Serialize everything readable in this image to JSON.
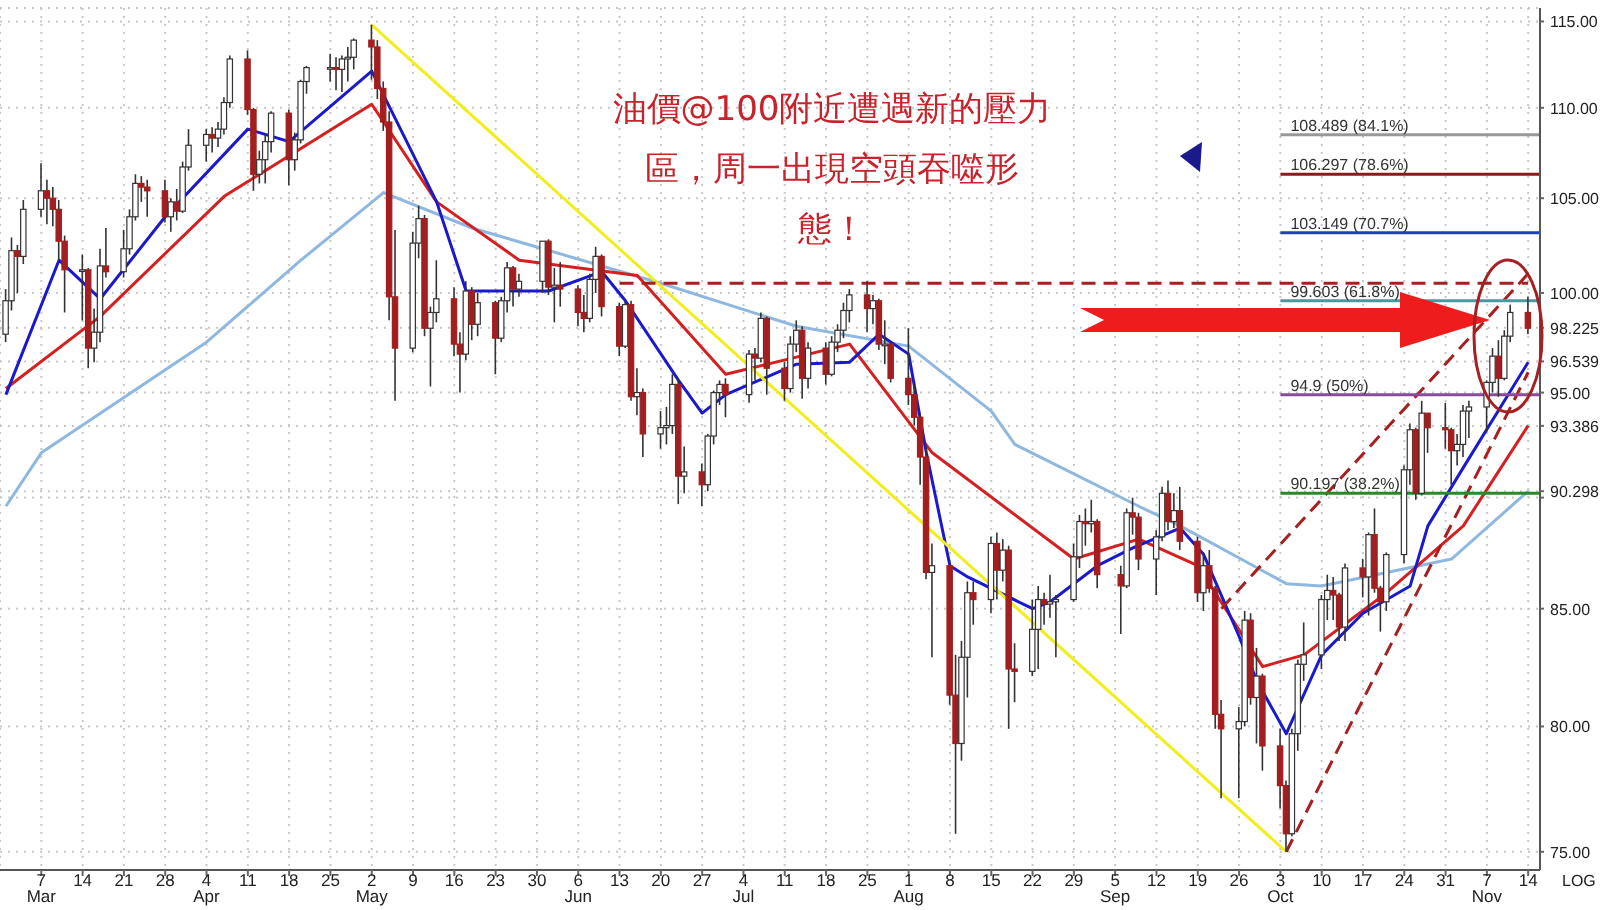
{
  "chart_data": {
    "type": "candlestick",
    "log": true,
    "grid": true,
    "xlim": [
      "--02-28",
      "--11-16"
    ],
    "ylim": [
      74.3,
      115.8
    ],
    "yticks": [
      {
        "value": 75,
        "label": "75.00"
      },
      {
        "value": 80,
        "label": "80.00"
      },
      {
        "value": 85,
        "label": "85.00"
      },
      {
        "value": 90,
        "label": null
      },
      {
        "value": 90.298,
        "label": "90.298"
      },
      {
        "value": 93.386,
        "label": "93.386"
      },
      {
        "value": 95,
        "label": "95.00"
      },
      {
        "value": 96.539,
        "label": "96.539"
      },
      {
        "value": 98.225,
        "label": "98.225"
      },
      {
        "value": 100,
        "label": "100.00"
      },
      {
        "value": 105,
        "label": "105.00"
      },
      {
        "value": 110,
        "label": "110.00"
      },
      {
        "value": 115,
        "label": "115.00"
      }
    ],
    "xticks": [
      {
        "value": "--03-07",
        "label": "7\nMar"
      },
      {
        "value": "--03-14",
        "label": "14"
      },
      {
        "value": "--03-21",
        "label": "21"
      },
      {
        "value": "--03-28",
        "label": "28"
      },
      {
        "value": "--04-04",
        "label": "4\nApr"
      },
      {
        "value": "--04-11",
        "label": "11"
      },
      {
        "value": "--04-18",
        "label": "18"
      },
      {
        "value": "--04-25",
        "label": "25"
      },
      {
        "value": "--05-02",
        "label": "2\nMay"
      },
      {
        "value": "--05-09",
        "label": "9"
      },
      {
        "value": "--05-16",
        "label": "16"
      },
      {
        "value": "--05-23",
        "label": "23"
      },
      {
        "value": "--05-30",
        "label": "30"
      },
      {
        "value": "--06-06",
        "label": "6\nJun"
      },
      {
        "value": "--06-13",
        "label": "13"
      },
      {
        "value": "--06-20",
        "label": "20"
      },
      {
        "value": "--06-27",
        "label": "27"
      },
      {
        "value": "--07-04",
        "label": "4\nJul"
      },
      {
        "value": "--07-11",
        "label": "11"
      },
      {
        "value": "--07-18",
        "label": "18"
      },
      {
        "value": "--07-25",
        "label": "25"
      },
      {
        "value": "--08-01",
        "label": "1\nAug"
      },
      {
        "value": "--08-08",
        "label": "8"
      },
      {
        "value": "--08-15",
        "label": "15"
      },
      {
        "value": "--08-22",
        "label": "22"
      },
      {
        "value": "--08-29",
        "label": "29"
      },
      {
        "value": "--09-05",
        "label": "5\nSep"
      },
      {
        "value": "--09-12",
        "label": "12"
      },
      {
        "value": "--09-19",
        "label": "19"
      },
      {
        "value": "--09-26",
        "label": "26"
      },
      {
        "value": "--10-03",
        "label": "3\nOct"
      },
      {
        "value": "--10-10",
        "label": "10"
      },
      {
        "value": "--10-17",
        "label": "17"
      },
      {
        "value": "--10-24",
        "label": "24"
      },
      {
        "value": "--10-31",
        "label": "31"
      },
      {
        "value": "--11-07",
        "label": "7\nNov"
      },
      {
        "value": "--11-14",
        "label": "14"
      }
    ],
    "x": [
      "--03-01",
      "--03-02",
      "--03-03",
      "--03-04",
      "--03-07",
      "--03-08",
      "--03-09",
      "--03-10",
      "--03-11",
      "--03-14",
      "--03-15",
      "--03-16",
      "--03-17",
      "--03-18",
      "--03-21",
      "--03-22",
      "--03-23",
      "--03-24",
      "--03-25",
      "--03-28",
      "--03-29",
      "--03-30",
      "--03-31",
      "--04-01",
      "--04-04",
      "--04-05",
      "--04-06",
      "--04-07",
      "--04-08",
      "--04-11",
      "--04-12",
      "--04-13",
      "--04-14",
      "--04-15",
      "--04-18",
      "--04-19",
      "--04-20",
      "--04-21",
      "--04-25",
      "--04-26",
      "--04-27",
      "--04-28",
      "--04-29",
      "--05-02",
      "--05-03",
      "--05-04",
      "--05-05",
      "--05-06",
      "--05-09",
      "--05-10",
      "--05-11",
      "--05-12",
      "--05-13",
      "--05-16",
      "--05-17",
      "--05-18",
      "--05-19",
      "--05-20",
      "--05-23",
      "--05-24",
      "--05-25",
      "--05-26",
      "--05-27",
      "--05-31",
      "--06-01",
      "--06-02",
      "--06-03",
      "--06-06",
      "--06-07",
      "--06-08",
      "--06-09",
      "--06-10",
      "--06-13",
      "--06-14",
      "--06-15",
      "--06-16",
      "--06-17",
      "--06-20",
      "--06-21",
      "--06-22",
      "--06-23",
      "--06-24",
      "--06-27",
      "--06-28",
      "--06-29",
      "--06-30",
      "--07-01",
      "--07-05",
      "--07-06",
      "--07-07",
      "--07-08",
      "--07-11",
      "--07-12",
      "--07-13",
      "--07-14",
      "--07-15",
      "--07-18",
      "--07-19",
      "--07-20",
      "--07-21",
      "--07-22",
      "--07-25",
      "--07-26",
      "--07-27",
      "--07-28",
      "--07-29",
      "--08-01",
      "--08-02",
      "--08-03",
      "--08-04",
      "--08-05",
      "--08-08",
      "--08-09",
      "--08-10",
      "--08-11",
      "--08-12",
      "--08-15",
      "--08-16",
      "--08-17",
      "--08-18",
      "--08-19",
      "--08-22",
      "--08-23",
      "--08-24",
      "--08-25",
      "--08-26",
      "--08-29",
      "--08-30",
      "--08-31",
      "--09-01",
      "--09-02",
      "--09-06",
      "--09-07",
      "--09-08",
      "--09-09",
      "--09-12",
      "--09-13",
      "--09-14",
      "--09-15",
      "--09-16",
      "--09-19",
      "--09-20",
      "--09-21",
      "--09-22",
      "--09-23",
      "--09-26",
      "--09-27",
      "--09-28",
      "--09-29",
      "--09-30",
      "--10-03",
      "--10-04",
      "--10-05",
      "--10-06",
      "--10-07",
      "--10-10",
      "--10-11",
      "--10-12",
      "--10-13",
      "--10-14",
      "--10-17",
      "--10-18",
      "--10-19",
      "--10-20",
      "--10-21",
      "--10-24",
      "--10-25",
      "--10-26",
      "--10-27",
      "--10-28",
      "--10-31",
      "--11-01",
      "--11-02",
      "--11-03",
      "--11-04",
      "--11-07",
      "--11-08",
      "--11-09",
      "--11-10",
      "--11-11",
      "--11-14"
    ],
    "ohlc": [
      [
        97.9,
        100.2,
        97.5,
        99.6
      ],
      [
        99.6,
        102.9,
        99.1,
        102.2
      ],
      [
        102.2,
        102.5,
        100.0,
        101.9
      ],
      [
        101.9,
        104.9,
        101.5,
        104.4
      ],
      [
        104.4,
        106.9,
        104.0,
        105.4
      ],
      [
        105.4,
        106.0,
        103.6,
        105.0
      ],
      [
        105.0,
        105.6,
        103.5,
        104.4
      ],
      [
        104.4,
        104.9,
        101.7,
        102.7
      ],
      [
        102.7,
        103.0,
        99.0,
        101.2
      ],
      [
        101.2,
        102.0,
        98.6,
        101.2
      ],
      [
        101.2,
        101.3,
        96.2,
        97.2
      ],
      [
        97.2,
        99.2,
        96.5,
        98.0
      ],
      [
        98.0,
        102.3,
        97.5,
        101.4
      ],
      [
        101.4,
        103.4,
        100.8,
        101.1
      ],
      [
        101.1,
        103.3,
        100.8,
        102.3
      ],
      [
        102.3,
        104.4,
        102.0,
        104.0
      ],
      [
        104.0,
        106.3,
        103.8,
        105.8
      ],
      [
        105.8,
        106.2,
        104.8,
        105.6
      ],
      [
        105.6,
        106.0,
        104.0,
        105.4
      ],
      [
        105.4,
        106.0,
        103.7,
        104.0
      ],
      [
        104.0,
        105.0,
        103.2,
        104.8
      ],
      [
        104.8,
        105.5,
        103.8,
        104.3
      ],
      [
        104.3,
        107.0,
        104.2,
        106.7
      ],
      [
        106.7,
        108.8,
        106.5,
        107.9
      ],
      [
        107.9,
        108.8,
        107.0,
        108.5
      ],
      [
        108.5,
        108.9,
        107.5,
        108.3
      ],
      [
        108.3,
        109.2,
        107.8,
        108.8
      ],
      [
        108.8,
        110.6,
        108.5,
        110.3
      ],
      [
        110.3,
        113.0,
        110.0,
        112.8
      ],
      [
        112.8,
        113.3,
        109.6,
        109.9
      ],
      [
        109.9,
        110.0,
        105.4,
        106.3
      ],
      [
        106.3,
        107.6,
        105.8,
        107.1
      ],
      [
        107.1,
        108.5,
        105.8,
        108.1
      ],
      [
        108.1,
        109.8,
        107.5,
        109.7
      ],
      [
        109.7,
        109.9,
        105.7,
        107.1
      ],
      [
        107.1,
        108.6,
        106.5,
        108.2
      ],
      [
        108.2,
        111.6,
        108.0,
        111.5
      ],
      [
        111.5,
        112.4,
        110.8,
        112.3
      ],
      [
        112.3,
        113.1,
        111.5,
        112.3
      ],
      [
        112.3,
        112.9,
        111.0,
        112.2
      ],
      [
        112.2,
        113.0,
        110.9,
        112.8
      ],
      [
        112.8,
        113.5,
        111.5,
        112.9
      ],
      [
        112.9,
        114.0,
        112.2,
        113.9
      ],
      [
        113.9,
        114.8,
        111.6,
        113.5
      ],
      [
        113.5,
        113.9,
        110.5,
        111.1
      ],
      [
        111.1,
        111.5,
        108.7,
        109.2
      ],
      [
        109.2,
        109.8,
        98.6,
        99.8
      ],
      [
        99.8,
        103.3,
        94.6,
        97.2
      ],
      [
        97.2,
        103.2,
        97.0,
        102.6
      ],
      [
        102.6,
        104.6,
        101.8,
        103.9
      ],
      [
        103.9,
        104.1,
        97.8,
        98.2
      ],
      [
        98.2,
        99.3,
        95.3,
        99.0
      ],
      [
        99.0,
        101.7,
        98.5,
        99.7
      ],
      [
        99.7,
        100.3,
        96.8,
        97.4
      ],
      [
        97.4,
        98.0,
        95.0,
        96.9
      ],
      [
        96.9,
        100.6,
        96.6,
        100.1
      ],
      [
        100.1,
        100.3,
        97.6,
        98.4
      ],
      [
        98.4,
        100.0,
        97.8,
        99.5
      ],
      [
        99.5,
        99.6,
        95.9,
        97.7
      ],
      [
        97.7,
        99.8,
        97.5,
        99.6
      ],
      [
        99.6,
        101.6,
        99.0,
        101.3
      ],
      [
        101.3,
        101.4,
        99.3,
        100.2
      ],
      [
        100.2,
        101.0,
        99.8,
        100.6
      ],
      [
        100.6,
        102.7,
        100.0,
        102.7
      ],
      [
        102.7,
        102.8,
        99.9,
        100.3
      ],
      [
        100.3,
        101.3,
        98.5,
        100.4
      ],
      [
        100.4,
        101.6,
        99.3,
        100.2
      ],
      [
        100.2,
        100.4,
        98.3,
        99.0
      ],
      [
        99.0,
        99.9,
        98.0,
        98.7
      ],
      [
        98.7,
        101.0,
        98.5,
        100.7
      ],
      [
        100.7,
        102.4,
        100.0,
        101.9
      ],
      [
        101.9,
        102.0,
        98.8,
        99.3
      ],
      [
        99.3,
        99.5,
        96.8,
        97.3
      ],
      [
        97.3,
        99.6,
        97.2,
        99.4
      ],
      [
        99.4,
        99.6,
        94.6,
        94.8
      ],
      [
        94.8,
        96.2,
        93.9,
        95.0
      ],
      [
        95.0,
        95.2,
        91.9,
        93.0
      ],
      [
        93.0,
        94.1,
        92.3,
        93.3
      ],
      [
        93.3,
        94.3,
        92.5,
        93.4
      ],
      [
        93.4,
        95.9,
        93.0,
        95.4
      ],
      [
        95.4,
        95.7,
        89.7,
        91.0
      ],
      [
        91.0,
        92.4,
        90.2,
        91.2
      ],
      [
        91.2,
        91.6,
        89.6,
        90.6
      ],
      [
        90.6,
        93.0,
        90.3,
        92.9
      ],
      [
        92.9,
        95.1,
        92.5,
        95.0
      ],
      [
        95.0,
        95.6,
        94.4,
        95.4
      ],
      [
        95.4,
        95.7,
        93.8,
        94.9
      ],
      [
        94.9,
        97.1,
        94.5,
        96.9
      ],
      [
        96.9,
        97.2,
        95.6,
        96.7
      ],
      [
        96.7,
        99.0,
        96.5,
        98.7
      ],
      [
        98.7,
        98.8,
        94.9,
        96.2
      ],
      [
        96.2,
        96.5,
        94.6,
        95.2
      ],
      [
        95.2,
        97.8,
        95.0,
        97.4
      ],
      [
        97.4,
        98.6,
        97.0,
        98.1
      ],
      [
        98.1,
        98.3,
        94.7,
        95.7
      ],
      [
        95.7,
        97.5,
        95.2,
        97.2
      ],
      [
        97.2,
        97.5,
        95.4,
        95.9
      ],
      [
        95.9,
        97.8,
        95.8,
        97.5
      ],
      [
        97.5,
        98.4,
        97.0,
        98.1
      ],
      [
        98.1,
        99.5,
        97.7,
        99.1
      ],
      [
        99.1,
        100.2,
        98.5,
        99.9
      ],
      [
        99.9,
        100.6,
        98.0,
        99.2
      ],
      [
        99.2,
        99.9,
        98.4,
        99.6
      ],
      [
        99.6,
        99.7,
        97.1,
        97.4
      ],
      [
        97.4,
        98.6,
        96.4,
        97.4
      ],
      [
        97.4,
        97.5,
        95.5,
        95.7
      ],
      [
        95.7,
        98.2,
        94.4,
        94.9
      ],
      [
        94.9,
        95.4,
        93.4,
        93.8
      ],
      [
        93.8,
        94.0,
        90.6,
        91.9
      ],
      [
        91.9,
        92.4,
        86.3,
        86.6
      ],
      [
        86.6,
        87.9,
        82.9,
        86.9
      ],
      [
        86.9,
        87.0,
        80.9,
        81.3
      ],
      [
        81.3,
        83.0,
        75.7,
        79.3
      ],
      [
        79.3,
        83.6,
        78.6,
        82.9
      ],
      [
        82.9,
        86.2,
        81.2,
        85.7
      ],
      [
        85.7,
        86.2,
        84.3,
        85.4
      ],
      [
        85.4,
        88.2,
        84.8,
        87.9
      ],
      [
        87.9,
        88.4,
        85.4,
        86.7
      ],
      [
        86.7,
        88.1,
        86.2,
        87.6
      ],
      [
        87.6,
        87.8,
        79.9,
        82.4
      ],
      [
        82.4,
        83.5,
        81.0,
        82.3
      ],
      [
        82.3,
        85.4,
        82.1,
        84.1
      ],
      [
        84.1,
        86.0,
        82.4,
        85.4
      ],
      [
        85.4,
        85.7,
        84.3,
        85.2
      ],
      [
        85.2,
        86.5,
        84.6,
        85.3
      ],
      [
        85.3,
        85.6,
        82.9,
        85.4
      ],
      [
        85.4,
        87.9,
        85.3,
        87.3
      ],
      [
        87.3,
        89.2,
        86.8,
        88.9
      ],
      [
        88.9,
        89.5,
        87.8,
        88.8
      ],
      [
        88.8,
        89.9,
        88.4,
        88.9
      ],
      [
        88.9,
        89.0,
        85.9,
        86.5
      ],
      [
        86.5,
        86.9,
        83.9,
        86.0
      ],
      [
        86.0,
        89.5,
        85.9,
        89.3
      ],
      [
        89.3,
        90.0,
        88.3,
        89.1
      ],
      [
        89.1,
        89.3,
        86.7,
        87.2
      ],
      [
        87.2,
        88.5,
        85.6,
        88.2
      ],
      [
        88.2,
        90.5,
        88.0,
        90.2
      ],
      [
        90.2,
        90.8,
        88.5,
        88.9
      ],
      [
        88.9,
        90.2,
        88.6,
        89.4
      ],
      [
        89.4,
        90.5,
        87.6,
        88.0
      ],
      [
        88.0,
        88.2,
        85.3,
        85.7
      ],
      [
        85.7,
        87.5,
        84.9,
        86.9
      ],
      [
        86.9,
        87.6,
        85.7,
        85.9
      ],
      [
        85.9,
        86.0,
        79.9,
        80.5
      ],
      [
        80.5,
        81.1,
        77.1,
        79.9
      ],
      [
        79.9,
        80.8,
        77.1,
        80.2
      ],
      [
        80.2,
        84.9,
        80.0,
        84.5
      ],
      [
        84.5,
        84.8,
        80.9,
        81.2
      ],
      [
        81.2,
        83.3,
        79.3,
        82.1
      ],
      [
        82.1,
        82.2,
        78.2,
        79.2
      ],
      [
        79.2,
        79.9,
        76.7,
        77.6
      ],
      [
        77.6,
        77.8,
        75.0,
        75.7
      ],
      [
        75.7,
        79.9,
        75.6,
        79.7
      ],
      [
        79.7,
        82.8,
        79.0,
        82.6
      ],
      [
        82.6,
        84.4,
        81.9,
        83.0
      ],
      [
        83.0,
        85.6,
        82.4,
        85.4
      ],
      [
        85.4,
        86.5,
        84.5,
        85.8
      ],
      [
        85.8,
        86.4,
        84.5,
        85.6
      ],
      [
        85.6,
        85.7,
        83.6,
        84.2
      ],
      [
        84.2,
        87.0,
        83.6,
        86.8
      ],
      [
        86.8,
        87.2,
        85.5,
        86.4
      ],
      [
        86.4,
        88.4,
        84.7,
        88.3
      ],
      [
        88.3,
        89.5,
        85.7,
        85.9
      ],
      [
        85.9,
        86.0,
        84.0,
        85.3
      ],
      [
        85.3,
        87.5,
        84.9,
        87.4
      ],
      [
        87.4,
        91.5,
        87.0,
        91.3
      ],
      [
        91.3,
        93.5,
        90.6,
        93.2
      ],
      [
        93.2,
        93.3,
        89.9,
        90.2
      ],
      [
        90.2,
        94.6,
        90.1,
        94.0
      ],
      [
        94.0,
        94.0,
        92.1,
        93.3
      ],
      [
        93.3,
        94.5,
        92.3,
        93.2
      ],
      [
        93.2,
        93.3,
        90.6,
        92.2
      ],
      [
        92.2,
        93.0,
        91.5,
        92.5
      ],
      [
        92.5,
        94.4,
        91.9,
        94.1
      ],
      [
        94.1,
        94.6,
        92.8,
        94.3
      ],
      [
        94.3,
        95.6,
        93.1,
        95.5
      ],
      [
        95.5,
        97.2,
        95.0,
        96.8
      ],
      [
        96.8,
        97.6,
        94.8,
        95.7
      ],
      [
        95.7,
        98.1,
        95.6,
        97.8
      ],
      [
        97.8,
        99.4,
        97.5,
        99.0
      ],
      [
        99.0,
        99.8,
        97.9,
        98.2
      ]
    ],
    "series": [
      {
        "type": "line",
        "color": "#8fb8e0",
        "line_style": "solid",
        "x": [
          "--03-01",
          "--03-07",
          "--04-04",
          "--04-20",
          "--05-04",
          "--05-19",
          "--05-31",
          "--06-20",
          "--07-13",
          "--08-01",
          "--08-15",
          "--08-19",
          "--09-09",
          "--09-16",
          "--10-04",
          "--10-10",
          "--11-01",
          "--11-14"
        ],
        "values": [
          89.6,
          92.1,
          97.5,
          101.7,
          105.3,
          103.4,
          102.3,
          100.5,
          98.3,
          97.3,
          94.1,
          92.5,
          89.6,
          88.7,
          86.1,
          86.0,
          87.2,
          90.3
        ]
      },
      {
        "type": "line",
        "color": "#d42020",
        "line_style": "solid",
        "x": [
          "--03-01",
          "--03-17",
          "--04-07",
          "--05-02",
          "--05-13",
          "--05-27",
          "--06-16",
          "--07-01",
          "--07-22",
          "--08-05",
          "--08-29",
          "--09-09",
          "--09-19",
          "--09-30",
          "--10-07",
          "--10-21",
          "--11-03",
          "--11-08",
          "--11-14"
        ],
        "values": [
          95.2,
          98.8,
          105.1,
          110.2,
          104.8,
          101.7,
          100.9,
          95.9,
          97.4,
          92.1,
          87.2,
          88.1,
          86.9,
          82.5,
          83.0,
          85.7,
          88.7,
          90.8,
          93.4
        ]
      },
      {
        "type": "line",
        "color": "#1a1acc",
        "line_style": "solid",
        "x": [
          "--03-01",
          "--03-10",
          "--03-17",
          "--03-28",
          "--04-11",
          "--04-18",
          "--05-02",
          "--05-13",
          "--05-18",
          "--06-01",
          "--06-10",
          "--06-14",
          "--06-23",
          "--06-27",
          "--07-01",
          "--07-13",
          "--07-22",
          "--07-27",
          "--08-01",
          "--08-04",
          "--08-08",
          "--08-11",
          "--08-22",
          "--08-25",
          "--09-02",
          "--09-08",
          "--09-16",
          "--09-20",
          "--09-26",
          "--09-29",
          "--10-04",
          "--10-10",
          "--10-17",
          "--10-25",
          "--10-28",
          "--11-03",
          "--11-14"
        ],
        "values": [
          94.9,
          101.7,
          99.7,
          104.0,
          108.8,
          108.1,
          112.1,
          104.8,
          100.1,
          100.1,
          101.1,
          99.6,
          95.6,
          94.0,
          94.9,
          96.4,
          96.5,
          97.9,
          96.9,
          92.1,
          86.9,
          86.4,
          85.0,
          85.3,
          86.9,
          87.7,
          88.6,
          87.4,
          83.8,
          81.9,
          79.7,
          83.0,
          84.8,
          86.0,
          88.7,
          91.4,
          96.5
        ]
      },
      {
        "type": "line",
        "color": "#f2ee1c",
        "line_style": "solid",
        "x": [
          "--05-02",
          "--10-04"
        ],
        "values": [
          114.8,
          75.0
        ]
      },
      {
        "type": "line",
        "color": "#a52020",
        "line_style": "dashed",
        "x": [
          "--06-13",
          "--11-14"
        ],
        "values": [
          100.5,
          100.5
        ]
      },
      {
        "type": "line",
        "color": "#a52020",
        "line_style": "dashed",
        "x": [
          "--09-23",
          "--11-14"
        ],
        "values": [
          85.0,
          101.0
        ]
      },
      {
        "type": "line",
        "color": "#a52020",
        "line_style": "dashed",
        "x": [
          "--10-04",
          "--11-14"
        ],
        "values": [
          75.0,
          96.0
        ]
      },
      {
        "type": "line",
        "color": "#999999",
        "line_style": "solid",
        "x": [
          "--10-03",
          "--11-16"
        ],
        "values": [
          108.489,
          108.489
        ]
      },
      {
        "type": "line",
        "color": "#8b1a1a",
        "line_style": "solid",
        "x": [
          "--10-03",
          "--11-16"
        ],
        "values": [
          106.297,
          106.297
        ]
      },
      {
        "type": "line",
        "color": "#1f3fbf",
        "line_style": "solid",
        "x": [
          "--10-03",
          "--11-16"
        ],
        "values": [
          103.149,
          103.149
        ]
      },
      {
        "type": "line",
        "color": "#3aa0a0",
        "line_style": "solid",
        "x": [
          "--10-03",
          "--11-16"
        ],
        "values": [
          99.603,
          99.603
        ]
      },
      {
        "type": "line",
        "color": "#8a4a9a",
        "line_style": "solid",
        "x": [
          "--10-03",
          "--11-16"
        ],
        "values": [
          94.9,
          94.9
        ]
      },
      {
        "type": "line",
        "color": "#2a8a2a",
        "line_style": "solid",
        "x": [
          "--10-03",
          "--11-16"
        ],
        "values": [
          90.197,
          90.197
        ]
      }
    ],
    "annotations": [
      "油價@100附近遭遇新的壓力區，周一出現空頭吞噬形態！",
      "LOG",
      {
        "text": "108.489 (84.1%)",
        "x": "--10-03",
        "y": 108.489
      },
      {
        "text": "106.297 (78.6%)",
        "x": "--10-03",
        "y": 106.297
      },
      {
        "text": "103.149 (70.7%)",
        "x": "--10-03",
        "y": 103.149
      },
      {
        "text": "99.603 (61.8%)",
        "x": "--10-03",
        "y": 99.603
      },
      {
        "text": "94.9 (50%)",
        "x": "--10-03",
        "y": 94.9
      },
      {
        "text": "90.197 (38.2%)",
        "x": "--10-03",
        "y": 90.197
      }
    ]
  }
}
